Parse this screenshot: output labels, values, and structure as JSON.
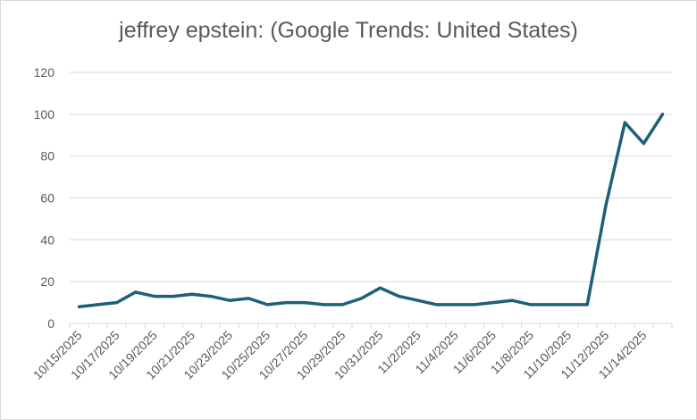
{
  "chart_data": {
    "type": "line",
    "title": "jeffrey epstein: (Google Trends: United States)",
    "xlabel": "",
    "ylabel": "",
    "ylim": [
      0,
      120
    ],
    "yticks": [
      0,
      20,
      40,
      60,
      80,
      100,
      120
    ],
    "grid": true,
    "legend": "none",
    "line_color": "#1f5f7a",
    "x": [
      "10/15/2025",
      "10/16/2025",
      "10/17/2025",
      "10/18/2025",
      "10/19/2025",
      "10/20/2025",
      "10/21/2025",
      "10/22/2025",
      "10/23/2025",
      "10/24/2025",
      "10/25/2025",
      "10/26/2025",
      "10/27/2025",
      "10/28/2025",
      "10/29/2025",
      "10/30/2025",
      "10/31/2025",
      "11/1/2025",
      "11/2/2025",
      "11/3/2025",
      "11/4/2025",
      "11/5/2025",
      "11/6/2025",
      "11/7/2025",
      "11/8/2025",
      "11/9/2025",
      "11/10/2025",
      "11/11/2025",
      "11/12/2025",
      "11/13/2025",
      "11/14/2025",
      "11/15/2025"
    ],
    "x_tick_labels": [
      "10/15/2025",
      "10/17/2025",
      "10/19/2025",
      "10/21/2025",
      "10/23/2025",
      "10/25/2025",
      "10/27/2025",
      "10/29/2025",
      "10/31/2025",
      "11/2/2025",
      "11/4/2025",
      "11/6/2025",
      "11/8/2025",
      "11/10/2025",
      "11/12/2025",
      "11/14/2025"
    ],
    "series": [
      {
        "values": [
          8,
          9,
          10,
          15,
          13,
          13,
          14,
          13,
          11,
          12,
          9,
          10,
          10,
          9,
          9,
          12,
          17,
          13,
          11,
          9,
          9,
          9,
          10,
          11,
          9,
          9,
          9,
          9,
          57,
          96,
          86,
          100
        ]
      }
    ]
  }
}
